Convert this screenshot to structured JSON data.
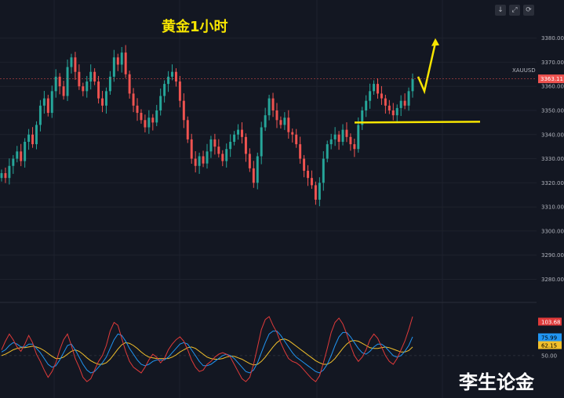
{
  "annotation_title": "黄金1小时",
  "watermark": "李生论金",
  "toolbar": {
    "icons": [
      "download-icon",
      "fullscreen-icon",
      "refresh-icon"
    ],
    "glyphs": [
      "↓",
      "⤢",
      "⟳"
    ]
  },
  "colors": {
    "background": "#131722",
    "up": "#26a69a",
    "down": "#ef5350",
    "annotation": "#f7e500",
    "osc_fast": "#e03a3a",
    "osc_mid": "#2196f3",
    "osc_slow": "#f2c02b"
  },
  "chart_data": [
    {
      "type": "candlestick",
      "symbol": "XAUUSD",
      "last_price": "3363.11",
      "ylim": [
        3273,
        3388
      ],
      "yticks": [
        3280,
        3290,
        3300,
        3310,
        3320,
        3330,
        3340,
        3350,
        3360,
        3370,
        3380
      ],
      "closes": [
        3324,
        3322,
        3327,
        3330,
        3333,
        3329,
        3337,
        3340,
        3336,
        3344,
        3352,
        3355,
        3349,
        3358,
        3364,
        3360,
        3356,
        3368,
        3372,
        3366,
        3360,
        3358,
        3362,
        3366,
        3362,
        3355,
        3352,
        3358,
        3364,
        3372,
        3369,
        3374,
        3365,
        3357,
        3352,
        3349,
        3346,
        3343,
        3347,
        3345,
        3350,
        3356,
        3361,
        3364,
        3366,
        3362,
        3354,
        3346,
        3338,
        3330,
        3327,
        3331,
        3328,
        3333,
        3338,
        3335,
        3332,
        3329,
        3334,
        3337,
        3340,
        3342,
        3339,
        3332,
        3326,
        3320,
        3331,
        3343,
        3348,
        3355,
        3350,
        3346,
        3344,
        3347,
        3341,
        3340,
        3336,
        3330,
        3325,
        3322,
        3319,
        3313,
        3320,
        3330,
        3336,
        3338,
        3340,
        3337,
        3342,
        3339,
        3336,
        3334,
        3344,
        3350,
        3354,
        3358,
        3361,
        3357,
        3355,
        3352,
        3350,
        3348,
        3351,
        3354,
        3352,
        3358,
        3363
      ],
      "overlay": {
        "swing_low_line": 3345,
        "arrow_target": 3378
      }
    },
    {
      "type": "oscillator",
      "ylim": [
        0,
        115
      ],
      "yticks": [
        50
      ],
      "labels": {
        "fast": "103.68",
        "mid": "75.99",
        "slow": "62.15"
      },
      "fast": [
        58,
        70,
        80,
        72,
        62,
        56,
        66,
        78,
        68,
        52,
        42,
        30,
        20,
        28,
        40,
        58,
        72,
        80,
        64,
        46,
        34,
        20,
        14,
        18,
        30,
        42,
        50,
        64,
        84,
        96,
        92,
        74,
        56,
        42,
        34,
        30,
        26,
        34,
        44,
        52,
        48,
        40,
        46,
        58,
        66,
        72,
        76,
        70,
        58,
        44,
        34,
        28,
        30,
        38,
        42,
        48,
        52,
        54,
        52,
        48,
        38,
        28,
        18,
        14,
        20,
        38,
        62,
        86,
        100,
        104,
        92,
        82,
        68,
        56,
        46,
        42,
        40,
        36,
        30,
        24,
        18,
        14,
        22,
        40,
        60,
        82,
        96,
        102,
        94,
        80,
        64,
        50,
        42,
        48,
        58,
        72,
        80,
        74,
        62,
        50,
        42,
        38,
        46,
        58,
        70,
        86,
        104
      ],
      "mid": [
        55,
        58,
        64,
        68,
        66,
        62,
        62,
        66,
        66,
        60,
        54,
        46,
        38,
        34,
        36,
        44,
        54,
        64,
        66,
        58,
        48,
        38,
        30,
        26,
        28,
        34,
        40,
        48,
        60,
        72,
        80,
        78,
        70,
        60,
        52,
        44,
        38,
        36,
        38,
        42,
        44,
        44,
        44,
        48,
        54,
        60,
        66,
        68,
        66,
        58,
        50,
        42,
        36,
        36,
        38,
        42,
        46,
        50,
        52,
        50,
        46,
        40,
        34,
        28,
        26,
        30,
        40,
        54,
        68,
        80,
        84,
        84,
        78,
        70,
        62,
        54,
        48,
        44,
        40,
        36,
        32,
        28,
        26,
        30,
        38,
        50,
        64,
        76,
        82,
        82,
        76,
        68,
        60,
        54,
        52,
        56,
        62,
        66,
        66,
        62,
        56,
        50,
        48,
        50,
        56,
        64,
        76
      ],
      "slow": [
        50,
        52,
        55,
        58,
        60,
        61,
        61,
        62,
        63,
        62,
        60,
        57,
        53,
        49,
        46,
        46,
        48,
        52,
        56,
        58,
        56,
        52,
        47,
        43,
        40,
        38,
        38,
        40,
        45,
        52,
        59,
        65,
        68,
        67,
        64,
        60,
        55,
        51,
        48,
        47,
        46,
        46,
        46,
        46,
        48,
        51,
        55,
        58,
        61,
        62,
        60,
        56,
        52,
        48,
        46,
        45,
        45,
        46,
        48,
        49,
        49,
        47,
        45,
        42,
        39,
        37,
        38,
        42,
        48,
        55,
        62,
        68,
        72,
        73,
        71,
        67,
        63,
        59,
        55,
        51,
        47,
        43,
        40,
        38,
        38,
        41,
        46,
        53,
        60,
        66,
        70,
        71,
        70,
        67,
        64,
        61,
        60,
        60,
        61,
        62,
        61,
        59,
        57,
        55,
        55,
        57,
        62
      ]
    }
  ]
}
